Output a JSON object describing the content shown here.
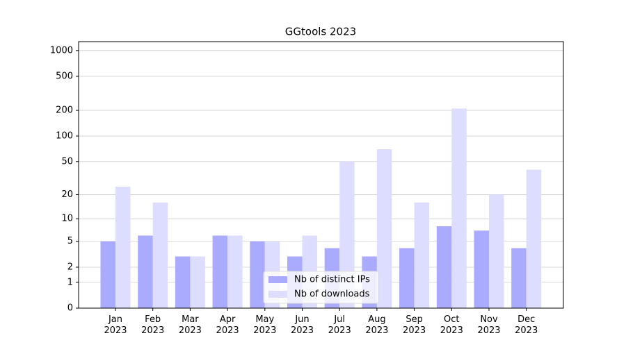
{
  "chart_data": {
    "type": "bar",
    "title": "GGtools 2023",
    "categories": [
      "Jan\n2023",
      "Feb\n2023",
      "Mar\n2023",
      "Apr\n2023",
      "May\n2023",
      "Jun\n2023",
      "Jul\n2023",
      "Aug\n2023",
      "Sep\n2023",
      "Oct\n2023",
      "Nov\n2023",
      "Dec\n2023"
    ],
    "series": [
      {
        "name": "Nb of distinct IPs",
        "color": "#aaaaff",
        "values": [
          5,
          6,
          3,
          6,
          5,
          3,
          4,
          3,
          4,
          8,
          7,
          4
        ]
      },
      {
        "name": "Nb of downloads",
        "color": "#ddddff",
        "values": [
          25,
          16,
          3,
          6,
          5,
          6,
          50,
          70,
          16,
          210,
          20,
          40
        ]
      }
    ],
    "yscale": "log1p",
    "ylim": [
      0,
      1270
    ],
    "yticks": [
      0,
      1,
      2,
      5,
      10,
      20,
      50,
      100,
      200,
      500,
      1000
    ],
    "grid": true,
    "legend": "lower center"
  }
}
